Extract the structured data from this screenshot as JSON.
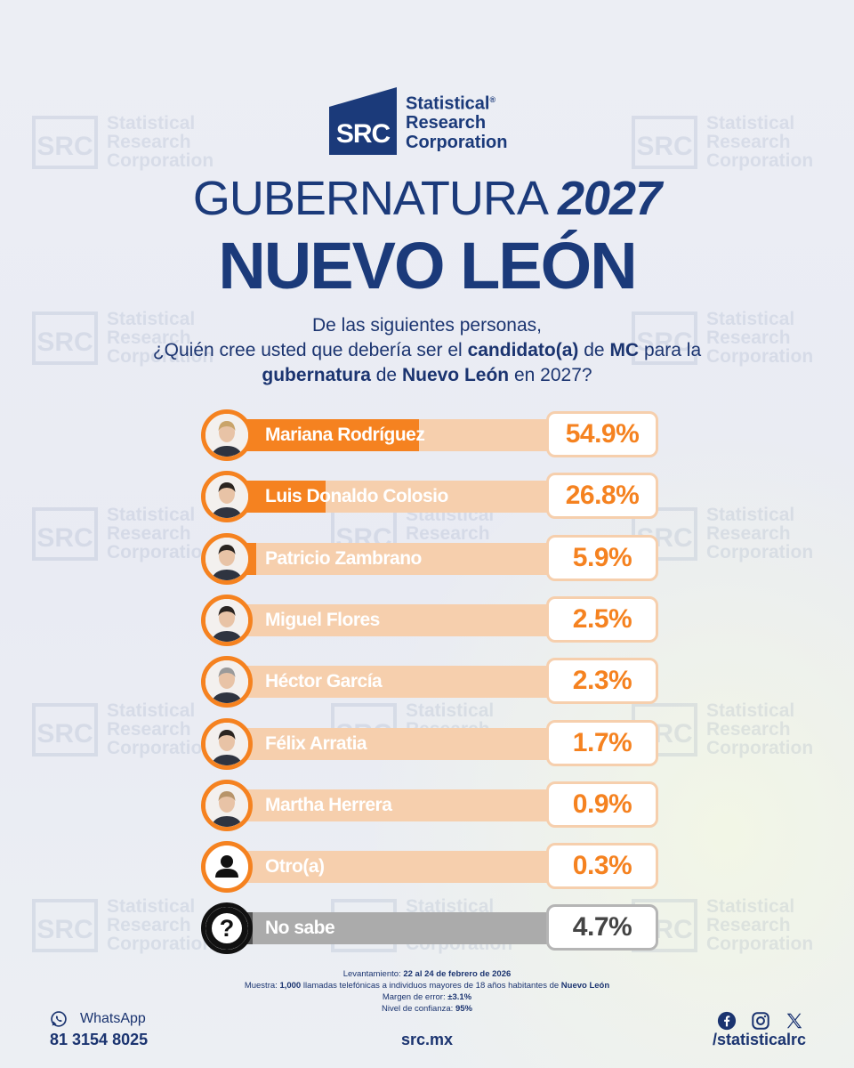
{
  "brand": {
    "logo_letters": "SRC",
    "line1": "Statistical",
    "line2": "Research",
    "line3": "Corporation",
    "registered": "®",
    "color": "#1b3a7a"
  },
  "title": {
    "prefix": "GUBERNATURA",
    "year": "2027",
    "state": "NUEVO LEÓN"
  },
  "question": {
    "line1": "De las siguientes personas,",
    "l2_a": "¿Quién cree usted que debería ser el ",
    "l2_b": "candidato(a)",
    "l2_c": " de ",
    "l2_d": "MC",
    "l2_e": " para la",
    "l3_a": "gubernatura",
    "l3_b": " de ",
    "l3_c": "Nuevo León",
    "l3_d": " en 2027?"
  },
  "chart_data": {
    "type": "bar",
    "orientation": "horizontal",
    "categories": [
      "Mariana Rodríguez",
      "Luis Donaldo Colosio",
      "Patricio Zambrano",
      "Miguel Flores",
      "Héctor García",
      "Félix Arratia",
      "Martha Herrera",
      "Otro(a)",
      "No sabe"
    ],
    "values": [
      54.9,
      26.8,
      5.9,
      2.5,
      2.3,
      1.7,
      0.9,
      0.3,
      4.7
    ],
    "labels": [
      "54.9%",
      "26.8%",
      "5.9%",
      "2.5%",
      "2.3%",
      "1.7%",
      "0.9%",
      "0.3%",
      "4.7%"
    ],
    "unit": "%",
    "xlim": [
      0,
      100
    ],
    "colors": {
      "bar": "#f58220",
      "track": "#f6cfad",
      "no_sabe_bar": "#555555",
      "no_sabe_track": "#ababab"
    }
  },
  "notes": {
    "lev_label": "Levantamiento: ",
    "lev_value": "22 al 24 de febrero de 2026",
    "muestra_label": "Muestra: ",
    "muestra_value": "1,000",
    "muestra_text": " llamadas telefónicas a individuos mayores de 18 años habitantes de ",
    "muestra_place": "Nuevo León",
    "margen_label": "Margen de error: ",
    "margen_value": "±3.1%",
    "nivel_label": "Nivel de confianza: ",
    "nivel_value": "95%"
  },
  "footer": {
    "whatsapp_label": "WhatsApp",
    "phone": "81 3154 8025",
    "site": "src.mx",
    "handle": "/statisticalrc",
    "icons": [
      "whatsapp-icon",
      "facebook-icon",
      "instagram-icon",
      "x-icon"
    ]
  }
}
